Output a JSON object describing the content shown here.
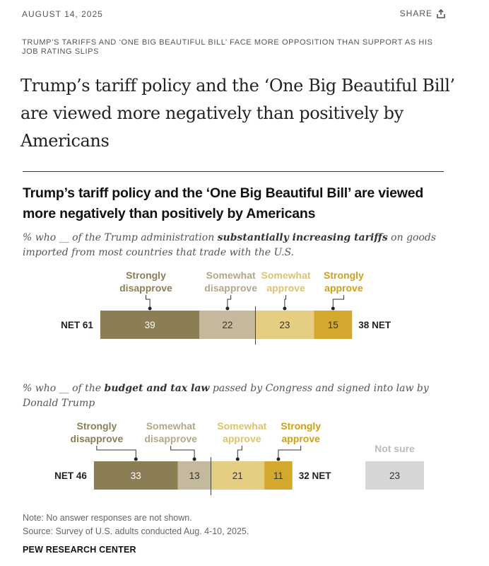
{
  "header": {
    "date": "AUGUST 14, 2025",
    "share_label": "SHARE"
  },
  "kicker": "TRUMP’S TARIFFS AND ‘ONE BIG BEAUTIFUL BILL’ FACE MORE OPPOSITION THAN SUPPORT AS HIS JOB RATING SLIPS",
  "headline": "Trump’s tariff policy and the ‘One Big Beautiful Bill’ are viewed more negatively than positively by Americans",
  "chart_title": "Trump’s tariff policy and the ‘One Big Beautiful Bill’ are viewed more negatively than positively by Americans",
  "chart_data": {
    "type": "bar",
    "orientation": "horizontal-diverging",
    "title": "Trump’s tariff policy and the ‘One Big Beautiful Bill’ are viewed more negatively than positively by Americans",
    "categories": [
      "Strongly disapprove",
      "Somewhat disapprove",
      "Somewhat approve",
      "Strongly approve"
    ],
    "colors": [
      "#8b7e55",
      "#c4b99c",
      "#e5cd82",
      "#d4a82c"
    ],
    "not_sure_color": "#d6d6d6",
    "net_prefix": "NET",
    "questions": [
      {
        "subtitle_pre": "% who __ of the Trump administration ",
        "subtitle_bold": "substantially increasing tariffs",
        "subtitle_post": " on goods imported from most countries that trade with the U.S.",
        "values": [
          39,
          22,
          23,
          15
        ],
        "net_disapprove": 61,
        "net_approve": 38
      },
      {
        "subtitle_pre": "% who __ of the ",
        "subtitle_bold": "budget and tax law",
        "subtitle_post": " passed by Congress and signed into law by Donald Trump",
        "values": [
          33,
          13,
          21,
          11
        ],
        "net_disapprove": 46,
        "net_approve": 32,
        "not_sure_label": "Not sure",
        "not_sure": 23
      }
    ]
  },
  "footer": {
    "note": "Note: No answer responses are not shown.",
    "source": "Source: Survey of U.S. adults conducted Aug. 4-10, 2025.",
    "brand": "PEW RESEARCH CENTER"
  }
}
